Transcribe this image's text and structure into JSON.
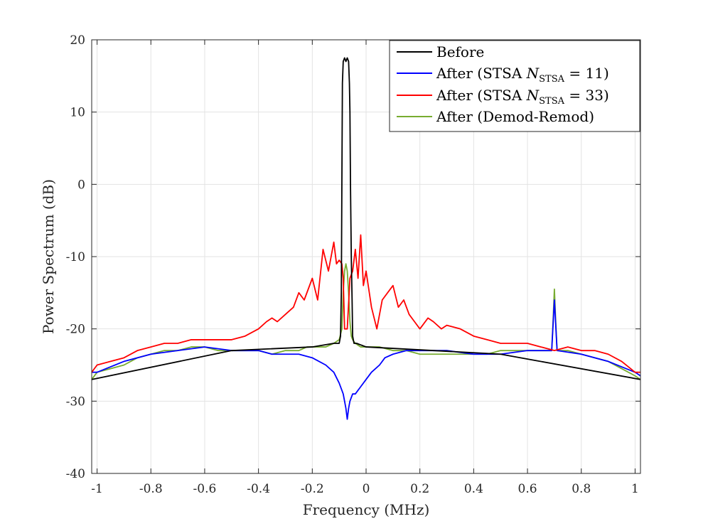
{
  "chart_data": {
    "type": "line",
    "title": "",
    "xlabel": "Frequency (MHz)",
    "ylabel": "Power Spectrum (dB)",
    "xlim": [
      -1.02,
      1.02
    ],
    "ylim": [
      -40,
      20
    ],
    "xticks": [
      -1,
      -0.8,
      -0.6,
      -0.4,
      -0.2,
      0,
      0.2,
      0.4,
      0.6,
      0.8,
      1
    ],
    "xtick_labels": [
      "-1",
      "-0.8",
      "-0.6",
      "-0.4",
      "-0.2",
      "0",
      "0.2",
      "0.4",
      "0.6",
      "0.8",
      "1"
    ],
    "yticks": [
      -40,
      -30,
      -20,
      -10,
      0,
      10,
      20
    ],
    "ytick_labels": [
      "-40",
      "-30",
      "-20",
      "-10",
      "0",
      "10",
      "20"
    ],
    "grid": true,
    "legend_position": "top-right",
    "legend": [
      {
        "label": "Before",
        "sub": "",
        "suffix": "",
        "color": "#000000"
      },
      {
        "label": "After (STSA ",
        "sub": "STSA",
        "suffix": " = 11)",
        "color": "#0000ff"
      },
      {
        "label": "After (STSA ",
        "sub": "STSA",
        "suffix": " = 33)",
        "color": "#ff0000"
      },
      {
        "label": "After (Demod-Remod)",
        "sub": "",
        "suffix": "",
        "color": "#77ac30"
      }
    ],
    "series": [
      {
        "name": "After (Demod-Remod)",
        "color": "#77ac30",
        "x": [
          -1.02,
          -1.0,
          -0.95,
          -0.9,
          -0.85,
          -0.8,
          -0.75,
          -0.7,
          -0.65,
          -0.6,
          -0.55,
          -0.5,
          -0.45,
          -0.4,
          -0.35,
          -0.3,
          -0.25,
          -0.22,
          -0.2,
          -0.15,
          -0.12,
          -0.1,
          -0.09,
          -0.085,
          -0.08,
          -0.075,
          -0.07,
          -0.065,
          -0.06,
          -0.055,
          -0.05,
          -0.04,
          -0.02,
          0.0,
          0.05,
          0.1,
          0.15,
          0.2,
          0.25,
          0.3,
          0.35,
          0.4,
          0.45,
          0.5,
          0.55,
          0.6,
          0.65,
          0.69,
          0.695,
          0.7,
          0.705,
          0.71,
          0.75,
          0.8,
          0.85,
          0.9,
          0.95,
          1.0,
          1.02
        ],
        "y": [
          -27,
          -26,
          -25.5,
          -25,
          -24,
          -23.5,
          -23,
          -23,
          -22.5,
          -22.5,
          -23,
          -23,
          -23,
          -23,
          -23.5,
          -23,
          -23,
          -22.5,
          -22.5,
          -22.5,
          -22,
          -21.5,
          -20,
          -15,
          -12,
          -11,
          -12,
          -15,
          -19,
          -21,
          -21.5,
          -22,
          -22.5,
          -22.5,
          -22.5,
          -23,
          -23,
          -23.5,
          -23.5,
          -23.5,
          -23.5,
          -23.5,
          -23.5,
          -23,
          -23,
          -23,
          -23,
          -23,
          -19,
          -14.5,
          -19,
          -23,
          -23,
          -23.5,
          -24,
          -24.5,
          -25.5,
          -26.5,
          -27
        ]
      },
      {
        "name": "After (STSA N_STSA = 11)",
        "color": "#0000ff",
        "x": [
          -1.02,
          -1.0,
          -0.9,
          -0.8,
          -0.7,
          -0.6,
          -0.5,
          -0.4,
          -0.35,
          -0.3,
          -0.25,
          -0.2,
          -0.15,
          -0.12,
          -0.1,
          -0.09,
          -0.085,
          -0.08,
          -0.075,
          -0.07,
          -0.065,
          -0.06,
          -0.05,
          -0.04,
          -0.03,
          -0.02,
          0.0,
          0.02,
          0.05,
          0.07,
          0.1,
          0.15,
          0.2,
          0.3,
          0.4,
          0.5,
          0.6,
          0.69,
          0.7,
          0.71,
          0.8,
          0.9,
          1.0,
          1.02
        ],
        "y": [
          -26,
          -26,
          -24.5,
          -23.5,
          -23,
          -22.5,
          -23,
          -23,
          -23.5,
          -23.5,
          -23.5,
          -24,
          -25,
          -26,
          -27.5,
          -28.5,
          -29,
          -30,
          -31,
          -32.5,
          -31,
          -30,
          -29,
          -29,
          -28.5,
          -28,
          -27,
          -26,
          -25,
          -24,
          -23.5,
          -23,
          -23,
          -23,
          -23.5,
          -23.5,
          -23,
          -23,
          -16,
          -23,
          -23.5,
          -24.5,
          -26,
          -26.5
        ]
      },
      {
        "name": "After (STSA N_STSA = 33)",
        "color": "#ff0000",
        "x": [
          -1.02,
          -1.0,
          -0.95,
          -0.9,
          -0.85,
          -0.8,
          -0.75,
          -0.7,
          -0.65,
          -0.6,
          -0.55,
          -0.5,
          -0.45,
          -0.4,
          -0.37,
          -0.35,
          -0.33,
          -0.3,
          -0.27,
          -0.25,
          -0.23,
          -0.2,
          -0.18,
          -0.16,
          -0.14,
          -0.12,
          -0.11,
          -0.1,
          -0.09,
          -0.085,
          -0.08,
          -0.07,
          -0.06,
          -0.05,
          -0.04,
          -0.03,
          -0.02,
          -0.01,
          0.0,
          0.02,
          0.04,
          0.06,
          0.08,
          0.1,
          0.12,
          0.14,
          0.16,
          0.18,
          0.2,
          0.23,
          0.25,
          0.28,
          0.3,
          0.35,
          0.4,
          0.45,
          0.5,
          0.55,
          0.6,
          0.65,
          0.7,
          0.75,
          0.8,
          0.85,
          0.9,
          0.95,
          1.0,
          1.02
        ],
        "y": [
          -26,
          -25,
          -24.5,
          -24,
          -23,
          -22.5,
          -22,
          -22,
          -21.5,
          -21.5,
          -21.5,
          -21.5,
          -21,
          -20,
          -19,
          -18.5,
          -19,
          -18,
          -17,
          -15,
          -16,
          -13,
          -16,
          -9,
          -12,
          -8,
          -11,
          -10.5,
          -11,
          -13,
          -20,
          -20,
          -13,
          -12,
          -9,
          -13,
          -7,
          -14,
          -12,
          -17,
          -20,
          -16,
          -15,
          -14,
          -17,
          -16,
          -18,
          -19,
          -20,
          -18.5,
          -19,
          -20,
          -19.5,
          -20,
          -21,
          -21.5,
          -22,
          -22,
          -22,
          -22.5,
          -23,
          -22.5,
          -23,
          -23,
          -23.5,
          -24.5,
          -26,
          -26
        ]
      },
      {
        "name": "Before",
        "color": "#000000",
        "x": [
          -1.02,
          -0.5,
          -0.2,
          -0.12,
          -0.1,
          -0.095,
          -0.092,
          -0.09,
          -0.088,
          -0.085,
          -0.08,
          -0.075,
          -0.07,
          -0.065,
          -0.062,
          -0.06,
          -0.058,
          -0.055,
          -0.052,
          -0.05,
          -0.045,
          -0.035,
          0.0,
          0.5,
          1.02
        ],
        "y": [
          -27,
          -23,
          -22.5,
          -22,
          -22,
          -21,
          -15,
          0,
          14,
          17,
          17.5,
          17,
          17.5,
          17,
          14,
          10,
          0,
          -10,
          -16,
          -21,
          -22,
          -22,
          -22.5,
          -23.5,
          -27
        ]
      }
    ]
  }
}
